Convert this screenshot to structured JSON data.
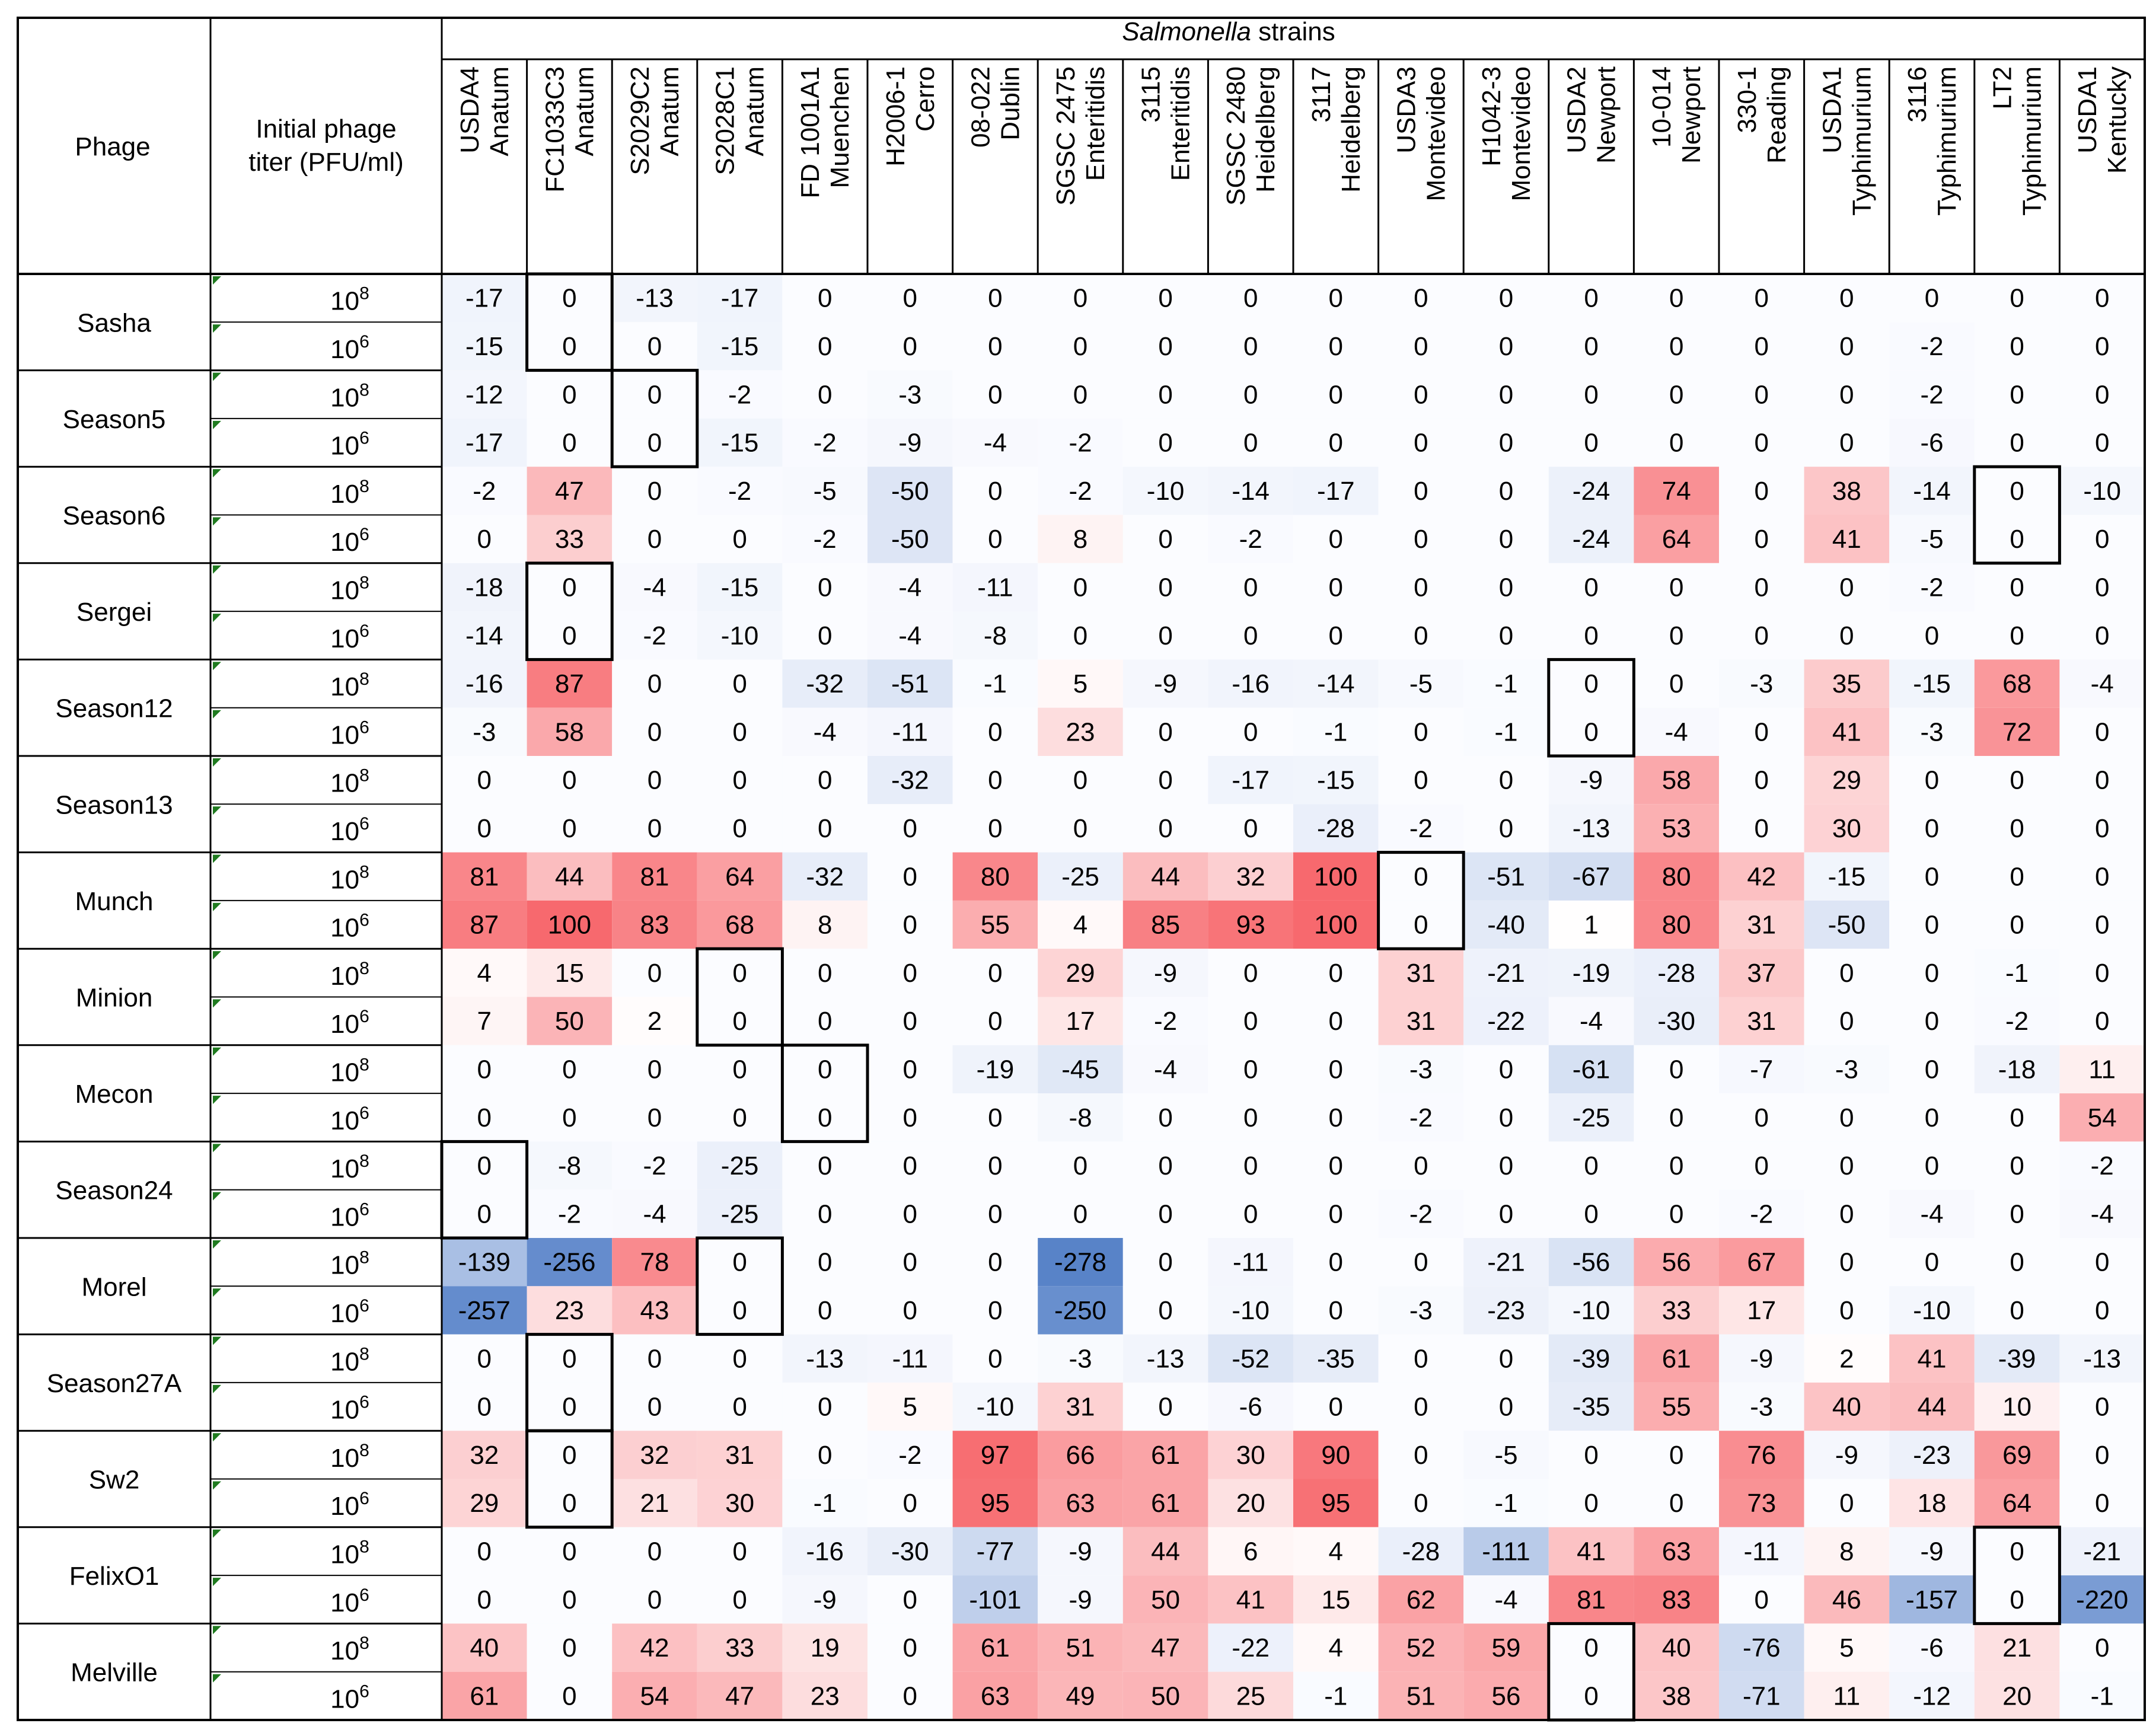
{
  "chart_data": {
    "type": "heatmap",
    "title_italic": "Salmonella",
    "title_rest": " strains",
    "col_header_phage": "Phage",
    "col_header_titer_line1": "Initial phage",
    "col_header_titer_line2": "titer (PFU/ml)",
    "titer_base": "10",
    "strains": [
      {
        "id": "USDA4",
        "serovar": "Anatum"
      },
      {
        "id": "FC1033C3",
        "serovar": "Anatum"
      },
      {
        "id": "S2029C2",
        "serovar": "Anatum"
      },
      {
        "id": "S2028C1",
        "serovar": "Anatum"
      },
      {
        "id": "FD 1001A1",
        "serovar": "Muenchen"
      },
      {
        "id": "H2006-1",
        "serovar": "Cerro"
      },
      {
        "id": "08-022",
        "serovar": "Dublin"
      },
      {
        "id": "SGSC 2475",
        "serovar": "Enteritidis"
      },
      {
        "id": "3115",
        "serovar": "Enteritidis"
      },
      {
        "id": "SGSC 2480",
        "serovar": "Heidelberg"
      },
      {
        "id": "3117",
        "serovar": "Heidelberg"
      },
      {
        "id": "USDA3",
        "serovar": "Montevideo"
      },
      {
        "id": "H1042-3",
        "serovar": "Montevideo"
      },
      {
        "id": "USDA2",
        "serovar": "Newport"
      },
      {
        "id": "10-014",
        "serovar": "Newport"
      },
      {
        "id": "330-1",
        "serovar": "Reading"
      },
      {
        "id": "USDA1",
        "serovar": "Typhimurium"
      },
      {
        "id": "3116",
        "serovar": "Typhimurium"
      },
      {
        "id": "LT2",
        "serovar": "Typhimurium"
      },
      {
        "id": "USDA1",
        "serovar": "Kentucky"
      }
    ],
    "phages": [
      {
        "name": "Sasha",
        "host_col": 1,
        "rows": [
          {
            "exp": "8",
            "values": [
              -17,
              0,
              -13,
              -17,
              0,
              0,
              0,
              0,
              0,
              0,
              0,
              0,
              0,
              0,
              0,
              0,
              0,
              0,
              0,
              0
            ]
          },
          {
            "exp": "6",
            "values": [
              -15,
              0,
              0,
              -15,
              0,
              0,
              0,
              0,
              0,
              0,
              0,
              0,
              0,
              0,
              0,
              0,
              0,
              -2,
              0,
              0
            ]
          }
        ]
      },
      {
        "name": "Season5",
        "host_col": 2,
        "rows": [
          {
            "exp": "8",
            "values": [
              -12,
              0,
              0,
              -2,
              0,
              -3,
              0,
              0,
              0,
              0,
              0,
              0,
              0,
              0,
              0,
              0,
              0,
              -2,
              0,
              0
            ]
          },
          {
            "exp": "6",
            "values": [
              -17,
              0,
              0,
              -15,
              -2,
              -9,
              -4,
              -2,
              0,
              0,
              0,
              0,
              0,
              0,
              0,
              0,
              0,
              -6,
              0,
              0
            ]
          }
        ]
      },
      {
        "name": "Season6",
        "host_col": 18,
        "rows": [
          {
            "exp": "8",
            "values": [
              -2,
              47,
              0,
              -2,
              -5,
              -50,
              0,
              -2,
              -10,
              -14,
              -17,
              0,
              0,
              -24,
              74,
              0,
              38,
              -14,
              0,
              -10
            ]
          },
          {
            "exp": "6",
            "values": [
              0,
              33,
              0,
              0,
              -2,
              -50,
              0,
              8,
              0,
              -2,
              0,
              0,
              0,
              -24,
              64,
              0,
              41,
              -5,
              0,
              0
            ]
          }
        ]
      },
      {
        "name": "Sergei",
        "host_col": 1,
        "rows": [
          {
            "exp": "8",
            "values": [
              -18,
              0,
              -4,
              -15,
              0,
              -4,
              -11,
              0,
              0,
              0,
              0,
              0,
              0,
              0,
              0,
              0,
              0,
              -2,
              0,
              0
            ]
          },
          {
            "exp": "6",
            "values": [
              -14,
              0,
              -2,
              -10,
              0,
              -4,
              -8,
              0,
              0,
              0,
              0,
              0,
              0,
              0,
              0,
              0,
              0,
              0,
              0,
              0
            ]
          }
        ]
      },
      {
        "name": "Season12",
        "host_col": 13,
        "rows": [
          {
            "exp": "8",
            "values": [
              -16,
              87,
              0,
              0,
              -32,
              -51,
              -1,
              5,
              -9,
              -16,
              -14,
              -5,
              -1,
              0,
              0,
              -3,
              35,
              -15,
              68,
              -4
            ]
          },
          {
            "exp": "6",
            "values": [
              -3,
              58,
              0,
              0,
              -4,
              -11,
              0,
              23,
              0,
              0,
              -1,
              0,
              -1,
              0,
              -4,
              0,
              41,
              -3,
              72,
              0
            ]
          }
        ]
      },
      {
        "name": "Season13",
        "host_col": -1,
        "rows": [
          {
            "exp": "8",
            "values": [
              0,
              0,
              0,
              0,
              0,
              -32,
              0,
              0,
              0,
              -17,
              -15,
              0,
              0,
              -9,
              58,
              0,
              29,
              0,
              0,
              0
            ]
          },
          {
            "exp": "6",
            "values": [
              0,
              0,
              0,
              0,
              0,
              0,
              0,
              0,
              0,
              0,
              -28,
              -2,
              0,
              -13,
              53,
              0,
              30,
              0,
              0,
              0
            ]
          }
        ]
      },
      {
        "name": "Munch",
        "host_col": 11,
        "rows": [
          {
            "exp": "8",
            "values": [
              81,
              44,
              81,
              64,
              -32,
              0,
              80,
              -25,
              44,
              32,
              100,
              0,
              -51,
              -67,
              80,
              42,
              -15,
              0,
              0,
              0
            ]
          },
          {
            "exp": "6",
            "values": [
              87,
              100,
              83,
              68,
              8,
              0,
              55,
              4,
              85,
              93,
              100,
              0,
              -40,
              1,
              80,
              31,
              -50,
              0,
              0,
              0
            ]
          }
        ]
      },
      {
        "name": "Minion",
        "host_col": 3,
        "rows": [
          {
            "exp": "8",
            "values": [
              4,
              15,
              0,
              0,
              0,
              0,
              0,
              29,
              -9,
              0,
              0,
              31,
              -21,
              -19,
              -28,
              37,
              0,
              0,
              -1,
              0
            ]
          },
          {
            "exp": "6",
            "values": [
              7,
              50,
              2,
              0,
              0,
              0,
              0,
              17,
              -2,
              0,
              0,
              31,
              -22,
              -4,
              -30,
              31,
              0,
              0,
              -2,
              0
            ]
          }
        ]
      },
      {
        "name": "Mecon",
        "host_col": 4,
        "rows": [
          {
            "exp": "8",
            "values": [
              0,
              0,
              0,
              0,
              0,
              0,
              -19,
              -45,
              -4,
              0,
              0,
              -3,
              0,
              -61,
              0,
              -7,
              -3,
              0,
              -18,
              11
            ]
          },
          {
            "exp": "6",
            "values": [
              0,
              0,
              0,
              0,
              0,
              0,
              0,
              -8,
              0,
              0,
              0,
              -2,
              0,
              -25,
              0,
              0,
              0,
              0,
              0,
              54
            ]
          }
        ]
      },
      {
        "name": "Season24",
        "host_col": 0,
        "rows": [
          {
            "exp": "8",
            "values": [
              0,
              -8,
              -2,
              -25,
              0,
              0,
              0,
              0,
              0,
              0,
              0,
              0,
              0,
              0,
              0,
              0,
              0,
              0,
              0,
              -2
            ]
          },
          {
            "exp": "6",
            "values": [
              0,
              -2,
              -4,
              -25,
              0,
              0,
              0,
              0,
              0,
              0,
              0,
              -2,
              0,
              0,
              0,
              -2,
              0,
              -4,
              0,
              -4
            ]
          }
        ]
      },
      {
        "name": "Morel",
        "host_col": 3,
        "rows": [
          {
            "exp": "8",
            "values": [
              -139,
              -256,
              78,
              0,
              0,
              0,
              0,
              -278,
              0,
              -11,
              0,
              0,
              -21,
              -56,
              56,
              67,
              0,
              0,
              0,
              0
            ]
          },
          {
            "exp": "6",
            "values": [
              -257,
              23,
              43,
              0,
              0,
              0,
              0,
              -250,
              0,
              -10,
              0,
              -3,
              -23,
              -10,
              33,
              17,
              0,
              -10,
              0,
              0
            ]
          }
        ]
      },
      {
        "name": "Season27A",
        "host_col": 1,
        "rows": [
          {
            "exp": "8",
            "values": [
              0,
              0,
              0,
              0,
              -13,
              -11,
              0,
              -3,
              -13,
              -52,
              -35,
              0,
              0,
              -39,
              61,
              -9,
              2,
              41,
              -39,
              -13
            ]
          },
          {
            "exp": "6",
            "values": [
              0,
              0,
              0,
              0,
              0,
              5,
              -10,
              31,
              0,
              -6,
              0,
              0,
              0,
              -35,
              55,
              -3,
              40,
              44,
              10,
              0
            ]
          }
        ]
      },
      {
        "name": "Sw2",
        "host_col": 1,
        "rows": [
          {
            "exp": "8",
            "values": [
              32,
              0,
              32,
              31,
              0,
              -2,
              97,
              66,
              61,
              30,
              90,
              0,
              -5,
              0,
              0,
              76,
              -9,
              -23,
              69,
              0
            ]
          },
          {
            "exp": "6",
            "values": [
              29,
              0,
              21,
              30,
              -1,
              0,
              95,
              63,
              61,
              20,
              95,
              0,
              -1,
              0,
              0,
              73,
              0,
              18,
              64,
              0
            ]
          }
        ]
      },
      {
        "name": "FelixO1",
        "host_col": 18,
        "rows": [
          {
            "exp": "8",
            "values": [
              0,
              0,
              0,
              0,
              -16,
              -30,
              -77,
              -9,
              44,
              6,
              4,
              -28,
              -111,
              41,
              63,
              -11,
              8,
              -9,
              0,
              -21
            ]
          },
          {
            "exp": "6",
            "values": [
              0,
              0,
              0,
              0,
              -9,
              0,
              -101,
              -9,
              50,
              41,
              15,
              62,
              -4,
              81,
              83,
              0,
              46,
              -157,
              0,
              -220
            ]
          }
        ]
      },
      {
        "name": "Melville",
        "host_col": 13,
        "rows": [
          {
            "exp": "8",
            "values": [
              40,
              0,
              42,
              33,
              19,
              0,
              61,
              51,
              47,
              -22,
              4,
              52,
              59,
              0,
              40,
              -76,
              5,
              -6,
              21,
              0
            ]
          },
          {
            "exp": "6",
            "values": [
              61,
              0,
              54,
              47,
              23,
              0,
              63,
              49,
              50,
              25,
              -1,
              51,
              56,
              0,
              38,
              -71,
              11,
              -12,
              20,
              -1
            ]
          }
        ]
      }
    ]
  }
}
